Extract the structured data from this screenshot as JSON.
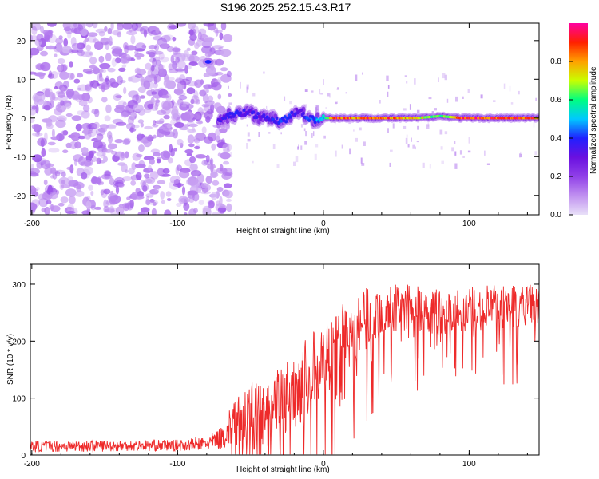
{
  "title": "S196.2025.252.15.43.R17",
  "colors": {
    "snr_line": "#ee2a2a",
    "frame": "#000000",
    "colormap": [
      "#e8e0f8",
      "#c090f0",
      "#9040e8",
      "#6a10e0",
      "#2020ff",
      "#00c8ff",
      "#00ff80",
      "#c8ff00",
      "#ffa000",
      "#ff2000",
      "#ff00a0"
    ]
  },
  "chart_data": [
    {
      "type": "heatmap",
      "title": "",
      "xlabel": "Height of straight line (km)",
      "ylabel": "Frequency (Hz)",
      "xlim": [
        -201,
        148
      ],
      "ylim": [
        -25,
        24.5
      ],
      "xticks": [
        -200,
        -100,
        0,
        100
      ],
      "yticks": [
        -20,
        -10,
        0,
        10,
        20
      ],
      "colorbar": {
        "label": "Normalized spectral amplitude",
        "range": [
          0,
          1
        ],
        "ticks": [
          0.0,
          0.2,
          0.4,
          0.6,
          0.8
        ]
      },
      "noise_region": {
        "x_range": [
          -201,
          -70
        ],
        "y_range": [
          -25,
          24.5
        ],
        "amplitude_range": [
          0.05,
          0.18
        ]
      },
      "signal_band": {
        "points": [
          {
            "x": -72,
            "y": -0.5,
            "amp": 0.35
          },
          {
            "x": -66,
            "y": 0.5,
            "amp": 0.35
          },
          {
            "x": -60,
            "y": 1.0,
            "amp": 0.38
          },
          {
            "x": -54,
            "y": 1.5,
            "amp": 0.35
          },
          {
            "x": -48,
            "y": 1.0,
            "amp": 0.35
          },
          {
            "x": -42,
            "y": 0.0,
            "amp": 0.33
          },
          {
            "x": -36,
            "y": 0.0,
            "amp": 0.38
          },
          {
            "x": -30,
            "y": -1.0,
            "amp": 0.4
          },
          {
            "x": -24,
            "y": 0.0,
            "amp": 0.42
          },
          {
            "x": -18,
            "y": 2.0,
            "amp": 0.33
          },
          {
            "x": -12,
            "y": 0.5,
            "amp": 0.4
          },
          {
            "x": -6,
            "y": -0.5,
            "amp": 0.45
          },
          {
            "x": 0,
            "y": 0.0,
            "amp": 0.5
          },
          {
            "x": 8,
            "y": 0.0,
            "amp": 0.9
          },
          {
            "x": 20,
            "y": 0.0,
            "amp": 0.85
          },
          {
            "x": 35,
            "y": 0.0,
            "amp": 0.9
          },
          {
            "x": 50,
            "y": 0.0,
            "amp": 0.85
          },
          {
            "x": 65,
            "y": 0.0,
            "amp": 0.75
          },
          {
            "x": 80,
            "y": 0.5,
            "amp": 0.6
          },
          {
            "x": 95,
            "y": 0.0,
            "amp": 0.9
          },
          {
            "x": 110,
            "y": 0.0,
            "amp": 0.9
          },
          {
            "x": 125,
            "y": 0.0,
            "amp": 0.92
          },
          {
            "x": 140,
            "y": 0.0,
            "amp": 0.9
          },
          {
            "x": 148,
            "y": 0.0,
            "amp": 0.85
          }
        ]
      },
      "spot": {
        "x": -79,
        "y": 14.5,
        "amp": 0.4
      }
    },
    {
      "type": "line",
      "title": "",
      "xlabel": "Height of straight line (km)",
      "ylabel": "SNR (10 * v/v)",
      "xlim": [
        -201,
        148
      ],
      "ylim": [
        0,
        335
      ],
      "xticks": [
        -200,
        -100,
        0,
        100
      ],
      "yticks": [
        0,
        100,
        200,
        300
      ],
      "series": [
        {
          "name": "SNR",
          "envelope": {
            "x": [
              -201,
              -150,
              -100,
              -80,
              -70,
              -60,
              -50,
              -40,
              -30,
              -20,
              -10,
              0,
              10,
              20,
              30,
              40,
              60,
              80,
              100,
              120,
              148
            ],
            "mean": [
              15,
              16,
              17,
              20,
              30,
              60,
              70,
              65,
              95,
              110,
              140,
              165,
              195,
              215,
              240,
              255,
              260,
              250,
              255,
              260,
              265
            ],
            "spread": [
              10,
              10,
              10,
              12,
              20,
              45,
              60,
              55,
              60,
              65,
              70,
              70,
              65,
              60,
              55,
              45,
              40,
              40,
              40,
              40,
              35
            ]
          },
          "sample_count": 1100,
          "noise_seed": 7
        }
      ]
    }
  ]
}
